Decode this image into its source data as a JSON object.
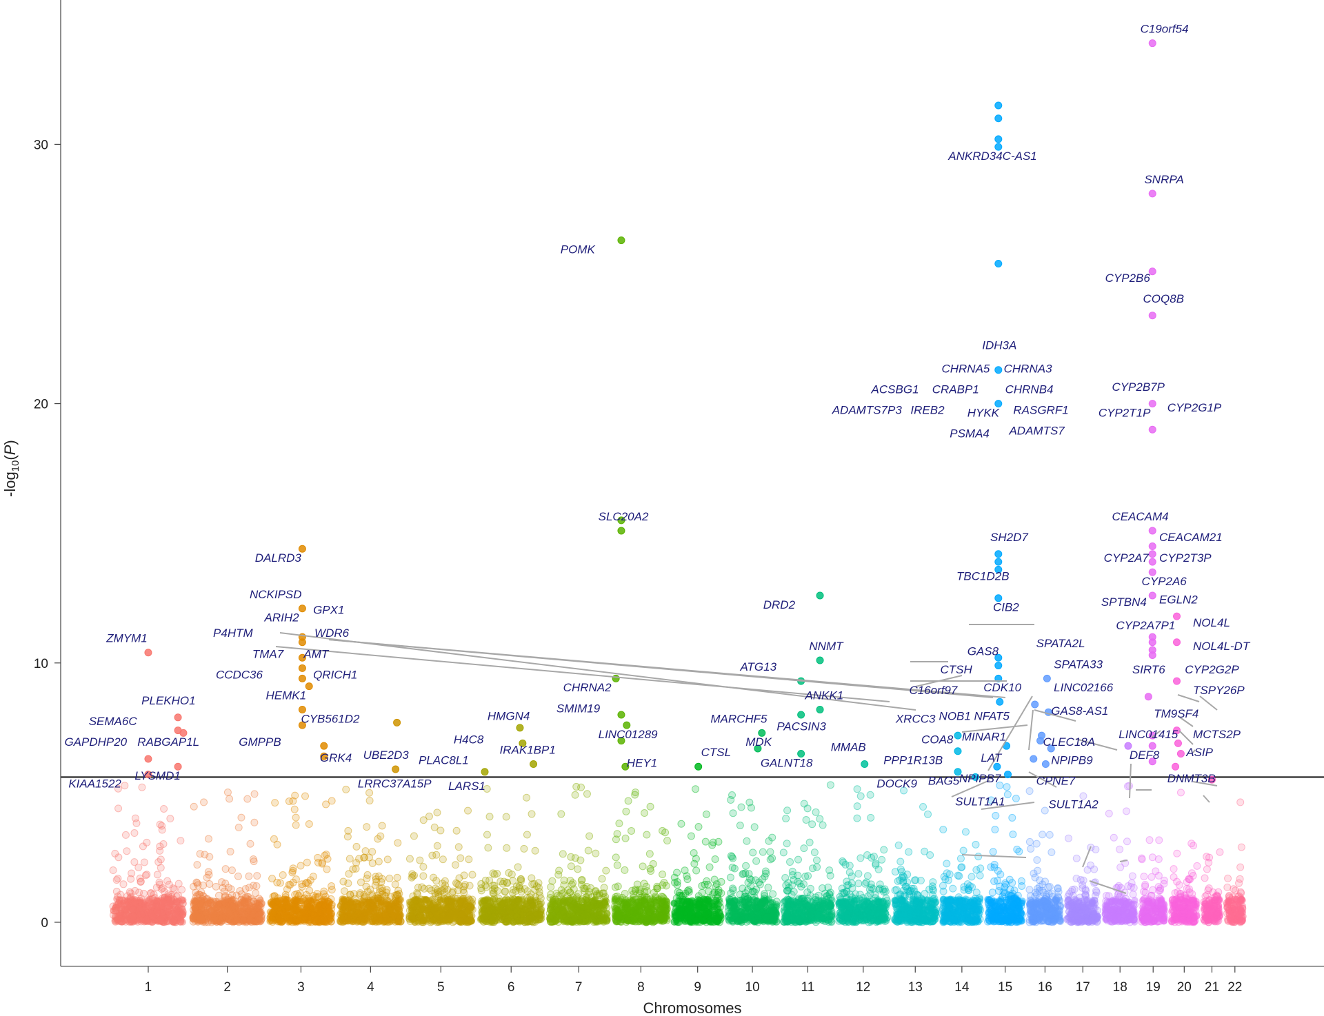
{
  "chart_data": {
    "type": "scatter",
    "subtype": "manhattan",
    "title": "",
    "xlabel": "Chromosomes",
    "ylabel": "-log10(P)",
    "ylabel_parts": {
      "pre": "-log",
      "sub": "10",
      "post": "(",
      "ital": "P",
      "close": ")"
    },
    "ylim": [
      -1.7,
      35.5
    ],
    "yticks": [
      0,
      10,
      20,
      30
    ],
    "significance_threshold": 5.6,
    "chromosomes": [
      {
        "label": "1",
        "start": 0,
        "end": 5.2,
        "color": "#F8766D"
      },
      {
        "label": "2",
        "start": 5.9,
        "end": 11.0,
        "color": "#ED8141"
      },
      {
        "label": "3",
        "start": 11.6,
        "end": 16.2,
        "color": "#E08B00"
      },
      {
        "label": "4",
        "start": 16.8,
        "end": 21.3,
        "color": "#CF9400"
      },
      {
        "label": "5",
        "start": 21.9,
        "end": 26.6,
        "color": "#BB9D00"
      },
      {
        "label": "6",
        "start": 27.2,
        "end": 31.7,
        "color": "#A3A500"
      },
      {
        "label": "7",
        "start": 32.3,
        "end": 36.6,
        "color": "#85AD00"
      },
      {
        "label": "8",
        "start": 37.1,
        "end": 41.0,
        "color": "#5BB300"
      },
      {
        "label": "9",
        "start": 41.5,
        "end": 45.0,
        "color": "#00B81F"
      },
      {
        "label": "10",
        "start": 45.5,
        "end": 49.1,
        "color": "#00BC59"
      },
      {
        "label": "11",
        "start": 49.6,
        "end": 53.2,
        "color": "#00BF7D"
      },
      {
        "label": "12",
        "start": 53.7,
        "end": 57.3,
        "color": "#00C19C"
      },
      {
        "label": "13",
        "start": 57.8,
        "end": 60.9,
        "color": "#00BFC4"
      },
      {
        "label": "14",
        "start": 61.4,
        "end": 64.2,
        "color": "#00B8E5"
      },
      {
        "label": "15",
        "start": 64.7,
        "end": 67.3,
        "color": "#00A9FF"
      },
      {
        "label": "16",
        "start": 67.8,
        "end": 70.1,
        "color": "#619CFF"
      },
      {
        "label": "17",
        "start": 70.6,
        "end": 72.9,
        "color": "#A58AFF"
      },
      {
        "label": "18",
        "start": 73.4,
        "end": 75.6,
        "color": "#C77CFF"
      },
      {
        "label": "19",
        "start": 76.1,
        "end": 77.8,
        "color": "#E76BF3"
      },
      {
        "label": "20",
        "start": 78.3,
        "end": 80.2,
        "color": "#FA62DB"
      },
      {
        "label": "21",
        "start": 80.7,
        "end": 81.9,
        "color": "#FF62BC"
      },
      {
        "label": "22",
        "start": 82.4,
        "end": 83.6,
        "color": "#FF6C91"
      }
    ],
    "top_hits": [
      {
        "x": 2.6,
        "y": 10.4
      },
      {
        "x": 2.6,
        "y": 6.3
      },
      {
        "x": 2.6,
        "y": 5.7
      },
      {
        "x": 4.8,
        "y": 7.9
      },
      {
        "x": 4.8,
        "y": 7.4
      },
      {
        "x": 5.2,
        "y": 7.3
      },
      {
        "x": 4.8,
        "y": 6.0
      },
      {
        "x": 14.0,
        "y": 14.4
      },
      {
        "x": 14.0,
        "y": 12.1
      },
      {
        "x": 14.0,
        "y": 11.0
      },
      {
        "x": 14.0,
        "y": 10.8
      },
      {
        "x": 14.0,
        "y": 10.2
      },
      {
        "x": 14.0,
        "y": 9.8
      },
      {
        "x": 14.0,
        "y": 9.4
      },
      {
        "x": 14.5,
        "y": 9.1
      },
      {
        "x": 14.0,
        "y": 8.2
      },
      {
        "x": 14.0,
        "y": 7.6
      },
      {
        "x": 15.6,
        "y": 6.8
      },
      {
        "x": 15.6,
        "y": 6.4
      },
      {
        "x": 21.0,
        "y": 7.7
      },
      {
        "x": 20.9,
        "y": 5.9
      },
      {
        "x": 27.5,
        "y": 5.8
      },
      {
        "x": 30.1,
        "y": 7.5
      },
      {
        "x": 30.3,
        "y": 6.9
      },
      {
        "x": 31.1,
        "y": 6.1
      },
      {
        "x": 37.2,
        "y": 9.4
      },
      {
        "x": 37.6,
        "y": 26.3
      },
      {
        "x": 37.6,
        "y": 15.5
      },
      {
        "x": 37.6,
        "y": 15.1
      },
      {
        "x": 37.6,
        "y": 8.0
      },
      {
        "x": 37.6,
        "y": 7.0
      },
      {
        "x": 38.0,
        "y": 7.6
      },
      {
        "x": 37.9,
        "y": 6.0
      },
      {
        "x": 43.3,
        "y": 6.0
      },
      {
        "x": 48.0,
        "y": 7.3
      },
      {
        "x": 47.7,
        "y": 6.7
      },
      {
        "x": 50.9,
        "y": 9.3
      },
      {
        "x": 50.9,
        "y": 8.0
      },
      {
        "x": 52.3,
        "y": 12.6
      },
      {
        "x": 52.3,
        "y": 10.1
      },
      {
        "x": 52.3,
        "y": 8.2
      },
      {
        "x": 50.9,
        "y": 6.5
      },
      {
        "x": 55.6,
        "y": 6.1
      },
      {
        "x": 62.5,
        "y": 7.2
      },
      {
        "x": 62.5,
        "y": 6.6
      },
      {
        "x": 62.5,
        "y": 5.8
      },
      {
        "x": 63.8,
        "y": 5.6
      },
      {
        "x": 65.5,
        "y": 31.5
      },
      {
        "x": 65.5,
        "y": 31.0
      },
      {
        "x": 65.5,
        "y": 30.2
      },
      {
        "x": 65.5,
        "y": 29.9
      },
      {
        "x": 65.5,
        "y": 25.4
      },
      {
        "x": 65.5,
        "y": 21.3
      },
      {
        "x": 65.5,
        "y": 20.0
      },
      {
        "x": 65.5,
        "y": 14.2
      },
      {
        "x": 65.5,
        "y": 13.9
      },
      {
        "x": 65.5,
        "y": 13.6
      },
      {
        "x": 65.5,
        "y": 12.5
      },
      {
        "x": 65.5,
        "y": 10.2
      },
      {
        "x": 65.5,
        "y": 9.9
      },
      {
        "x": 65.5,
        "y": 9.4
      },
      {
        "x": 65.6,
        "y": 8.5
      },
      {
        "x": 65.4,
        "y": 6.0
      },
      {
        "x": 66.1,
        "y": 6.8
      },
      {
        "x": 66.2,
        "y": 5.7
      },
      {
        "x": 68.2,
        "y": 8.4
      },
      {
        "x": 68.6,
        "y": 7.0
      },
      {
        "x": 69.1,
        "y": 9.4
      },
      {
        "x": 68.7,
        "y": 7.2
      },
      {
        "x": 68.1,
        "y": 6.3
      },
      {
        "x": 69.2,
        "y": 8.1
      },
      {
        "x": 69.4,
        "y": 6.7
      },
      {
        "x": 69.0,
        "y": 6.1
      },
      {
        "x": 75.1,
        "y": 6.8
      },
      {
        "x": 76.9,
        "y": 33.9
      },
      {
        "x": 76.9,
        "y": 28.1
      },
      {
        "x": 76.9,
        "y": 25.1
      },
      {
        "x": 76.9,
        "y": 23.4
      },
      {
        "x": 76.9,
        "y": 20.0
      },
      {
        "x": 76.9,
        "y": 19.0
      },
      {
        "x": 76.9,
        "y": 15.1
      },
      {
        "x": 76.9,
        "y": 14.5
      },
      {
        "x": 76.9,
        "y": 14.2
      },
      {
        "x": 76.9,
        "y": 13.9
      },
      {
        "x": 76.9,
        "y": 13.5
      },
      {
        "x": 76.9,
        "y": 12.6
      },
      {
        "x": 76.9,
        "y": 11.0
      },
      {
        "x": 76.9,
        "y": 10.8
      },
      {
        "x": 76.9,
        "y": 10.5
      },
      {
        "x": 76.9,
        "y": 10.3
      },
      {
        "x": 76.9,
        "y": 7.2
      },
      {
        "x": 76.9,
        "y": 6.8
      },
      {
        "x": 76.9,
        "y": 6.2
      },
      {
        "x": 76.6,
        "y": 8.7
      },
      {
        "x": 78.7,
        "y": 11.8
      },
      {
        "x": 78.7,
        "y": 10.8
      },
      {
        "x": 78.7,
        "y": 9.3
      },
      {
        "x": 78.7,
        "y": 7.4
      },
      {
        "x": 78.8,
        "y": 6.9
      },
      {
        "x": 79.0,
        "y": 6.5
      },
      {
        "x": 78.6,
        "y": 6.0
      },
      {
        "x": 81.3,
        "y": 5.5
      }
    ],
    "annotations": [
      {
        "text": "ZMYM1",
        "x": -0.5,
        "y": 10.8
      },
      {
        "text": "PLEKHO1",
        "x": 2.1,
        "y": 8.4
      },
      {
        "text": "SEMA6C",
        "x": -1.8,
        "y": 7.6
      },
      {
        "text": "GAPDHP20",
        "x": -3.6,
        "y": 6.8
      },
      {
        "text": "RABGAP1L",
        "x": 1.8,
        "y": 6.8
      },
      {
        "text": "KIAA1522",
        "x": -3.3,
        "y": 5.2
      },
      {
        "text": "LYSMD1",
        "x": 1.6,
        "y": 5.5
      },
      {
        "text": "DALRD3",
        "x": 10.5,
        "y": 13.9
      },
      {
        "text": "NCKIPSD",
        "x": 10.1,
        "y": 12.5
      },
      {
        "text": "ARIH2",
        "x": 11.2,
        "y": 11.6
      },
      {
        "text": "GPX1",
        "x": 14.8,
        "y": 11.9
      },
      {
        "text": "P4HTM",
        "x": 7.4,
        "y": 11.0
      },
      {
        "text": "WDR6",
        "x": 14.9,
        "y": 11.0
      },
      {
        "text": "TMA7",
        "x": 10.3,
        "y": 10.2
      },
      {
        "text": "AMT",
        "x": 14.1,
        "y": 10.2
      },
      {
        "text": "CCDC36",
        "x": 7.6,
        "y": 9.4
      },
      {
        "text": "QRICH1",
        "x": 14.8,
        "y": 9.4
      },
      {
        "text": "HEMK1",
        "x": 11.3,
        "y": 8.6
      },
      {
        "text": "CYB561D2",
        "x": 13.9,
        "y": 7.7
      },
      {
        "text": "GMPPB",
        "x": 9.3,
        "y": 6.8
      },
      {
        "text": "GRK4",
        "x": 15.3,
        "y": 6.2
      },
      {
        "text": "UBE2D3",
        "x": 18.5,
        "y": 6.3
      },
      {
        "text": "LRRC37A15P",
        "x": 18.1,
        "y": 5.2
      },
      {
        "text": "PLAC8L1",
        "x": 22.6,
        "y": 6.1
      },
      {
        "text": "LARS1",
        "x": 24.8,
        "y": 5.1
      },
      {
        "text": "H4C8",
        "x": 25.2,
        "y": 6.9
      },
      {
        "text": "HMGN4",
        "x": 27.7,
        "y": 7.8
      },
      {
        "text": "IRAK1BP1",
        "x": 28.6,
        "y": 6.5
      },
      {
        "text": "POMK",
        "x": 33.1,
        "y": 25.8
      },
      {
        "text": "SLC20A2",
        "x": 35.9,
        "y": 15.5
      },
      {
        "text": "CHRNA2",
        "x": 33.3,
        "y": 8.9
      },
      {
        "text": "SMIM19",
        "x": 32.8,
        "y": 8.1
      },
      {
        "text": "LINC01289",
        "x": 35.9,
        "y": 7.1
      },
      {
        "text": "HEY1",
        "x": 38.0,
        "y": 6.0
      },
      {
        "text": "CTSL",
        "x": 43.5,
        "y": 6.4
      },
      {
        "text": "MARCHF5",
        "x": 44.2,
        "y": 7.7
      },
      {
        "text": "MDK",
        "x": 46.8,
        "y": 6.8
      },
      {
        "text": "PACSIN3",
        "x": 49.1,
        "y": 7.4
      },
      {
        "text": "GALNT18",
        "x": 47.9,
        "y": 6.0
      },
      {
        "text": "MMAB",
        "x": 53.1,
        "y": 6.6
      },
      {
        "text": "DRD2",
        "x": 48.1,
        "y": 12.1
      },
      {
        "text": "ATG13",
        "x": 46.4,
        "y": 9.7
      },
      {
        "text": "NNMT",
        "x": 51.5,
        "y": 10.5
      },
      {
        "text": "ANKK1",
        "x": 51.2,
        "y": 8.6
      },
      {
        "text": "PPP1R13B",
        "x": 57.0,
        "y": 6.1
      },
      {
        "text": "DOCK9",
        "x": 56.5,
        "y": 5.2
      },
      {
        "text": "XRCC3",
        "x": 57.9,
        "y": 7.7
      },
      {
        "text": "NOB1",
        "x": 61.1,
        "y": 7.8
      },
      {
        "text": "COA8",
        "x": 59.8,
        "y": 6.9
      },
      {
        "text": "BAG5",
        "x": 60.3,
        "y": 5.3
      },
      {
        "text": "CTSH",
        "x": 61.2,
        "y": 9.6
      },
      {
        "text": "C16orf97",
        "x": 58.9,
        "y": 8.8
      },
      {
        "text": "GAS8",
        "x": 63.2,
        "y": 10.3
      },
      {
        "text": "CDK10",
        "x": 64.4,
        "y": 8.9
      },
      {
        "text": "NFAT5",
        "x": 63.7,
        "y": 7.8
      },
      {
        "text": "MINAR1",
        "x": 62.8,
        "y": 7.0
      },
      {
        "text": "LAT",
        "x": 64.2,
        "y": 6.2
      },
      {
        "text": "NPIPB7",
        "x": 62.6,
        "y": 5.4
      },
      {
        "text": "SULT1A1",
        "x": 62.3,
        "y": 4.5
      },
      {
        "text": "IDH3A",
        "x": 64.3,
        "y": 22.1
      },
      {
        "text": "CHRNA5",
        "x": 61.3,
        "y": 21.2
      },
      {
        "text": "CHRNA3",
        "x": 65.9,
        "y": 21.2
      },
      {
        "text": "ACSBG1",
        "x": 56.1,
        "y": 20.4
      },
      {
        "text": "CRABP1",
        "x": 60.6,
        "y": 20.4
      },
      {
        "text": "CHRNB4",
        "x": 66.0,
        "y": 20.4
      },
      {
        "text": "ADAMTS7P3",
        "x": 53.2,
        "y": 19.6
      },
      {
        "text": "IREB2",
        "x": 59.0,
        "y": 19.6
      },
      {
        "text": "HYKK",
        "x": 63.2,
        "y": 19.5
      },
      {
        "text": "RASGRF1",
        "x": 66.6,
        "y": 19.6
      },
      {
        "text": "PSMA4",
        "x": 61.9,
        "y": 18.7
      },
      {
        "text": "ADAMTS7",
        "x": 66.3,
        "y": 18.8
      },
      {
        "text": "ANKRD34C-AS1",
        "x": 61.8,
        "y": 29.4
      },
      {
        "text": "SH2D7",
        "x": 64.9,
        "y": 14.7
      },
      {
        "text": "TBC1D2B",
        "x": 62.4,
        "y": 13.2
      },
      {
        "text": "CIB2",
        "x": 65.1,
        "y": 12.0
      },
      {
        "text": "SPATA2L",
        "x": 68.3,
        "y": 10.6
      },
      {
        "text": "SPATA33",
        "x": 69.6,
        "y": 9.8
      },
      {
        "text": "LINC02166",
        "x": 69.6,
        "y": 8.9
      },
      {
        "text": "GAS8-AS1",
        "x": 69.4,
        "y": 8.0
      },
      {
        "text": "CLEC18A",
        "x": 68.8,
        "y": 6.8
      },
      {
        "text": "NPIPB9",
        "x": 69.4,
        "y": 6.1
      },
      {
        "text": "CPNE7",
        "x": 68.3,
        "y": 5.3
      },
      {
        "text": "SULT1A2",
        "x": 69.2,
        "y": 4.4
      },
      {
        "text": "C19orf54",
        "x": 76.0,
        "y": 34.3
      },
      {
        "text": "SNRPA",
        "x": 76.3,
        "y": 28.5
      },
      {
        "text": "CYP2B6",
        "x": 73.4,
        "y": 24.7
      },
      {
        "text": "COQ8B",
        "x": 76.2,
        "y": 23.9
      },
      {
        "text": "CYP2B7P",
        "x": 73.9,
        "y": 20.5
      },
      {
        "text": "CYP2T1P",
        "x": 72.9,
        "y": 19.5
      },
      {
        "text": "CYP2G1P",
        "x": 78.0,
        "y": 19.7
      },
      {
        "text": "CEACAM4",
        "x": 73.9,
        "y": 15.5
      },
      {
        "text": "CEACAM21",
        "x": 77.4,
        "y": 14.7
      },
      {
        "text": "CYP2A7",
        "x": 73.3,
        "y": 13.9
      },
      {
        "text": "CYP2T3P",
        "x": 77.4,
        "y": 13.9
      },
      {
        "text": "CYP2A6",
        "x": 76.1,
        "y": 13.0
      },
      {
        "text": "SPTBN4",
        "x": 73.1,
        "y": 12.2
      },
      {
        "text": "EGLN2",
        "x": 77.4,
        "y": 12.3
      },
      {
        "text": "CYP2A7P1",
        "x": 74.2,
        "y": 11.3
      },
      {
        "text": "NOL4L",
        "x": 79.9,
        "y": 11.4
      },
      {
        "text": "NOL4L-DT",
        "x": 79.9,
        "y": 10.5
      },
      {
        "text": "SIRT6",
        "x": 75.4,
        "y": 9.6
      },
      {
        "text": "CYP2G2P",
        "x": 79.3,
        "y": 9.6
      },
      {
        "text": "TSPY26P",
        "x": 79.9,
        "y": 8.8
      },
      {
        "text": "TM9SF4",
        "x": 77.0,
        "y": 7.9
      },
      {
        "text": "LINC01415",
        "x": 74.4,
        "y": 7.1
      },
      {
        "text": "MCTS2P",
        "x": 79.9,
        "y": 7.1
      },
      {
        "text": "DEF8",
        "x": 75.2,
        "y": 6.3
      },
      {
        "text": "ASIP",
        "x": 79.4,
        "y": 6.4
      },
      {
        "text": "DNMT3B",
        "x": 78.0,
        "y": 5.4
      }
    ]
  }
}
